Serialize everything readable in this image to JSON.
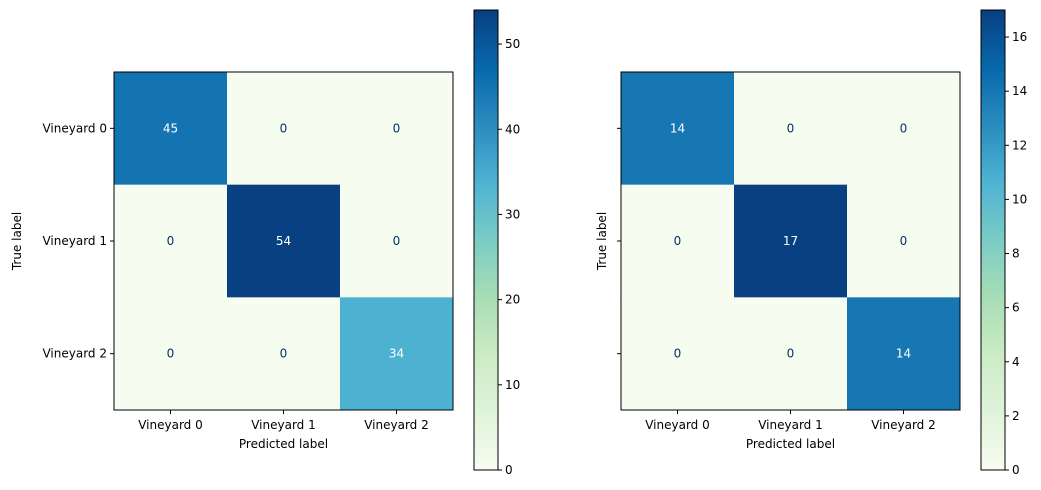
{
  "chart_data": [
    {
      "type": "heatmap",
      "title": "",
      "xlabel": "Predicted label",
      "ylabel": "True label",
      "x_categories": [
        "Vineyard 0",
        "Vineyard 1",
        "Vineyard 2"
      ],
      "y_categories": [
        "Vineyard 0",
        "Vineyard 1",
        "Vineyard 2"
      ],
      "matrix": [
        [
          45,
          0,
          0
        ],
        [
          0,
          54,
          0
        ],
        [
          0,
          0,
          34
        ]
      ],
      "colormap": "GnBu",
      "vmin": 0,
      "vmax": 54,
      "colorbar_ticks": [
        0,
        10,
        20,
        30,
        40,
        50
      ]
    },
    {
      "type": "heatmap",
      "title": "",
      "xlabel": "Predicted label",
      "ylabel": "True label",
      "x_categories": [
        "Vineyard 0",
        "Vineyard 1",
        "Vineyard 2"
      ],
      "y_categories": [
        "Vineyard 0",
        "Vineyard 1",
        "Vineyard 2"
      ],
      "show_y_tick_labels": false,
      "matrix": [
        [
          14,
          0,
          0
        ],
        [
          0,
          17,
          0
        ],
        [
          0,
          0,
          14
        ]
      ],
      "colormap": "GnBu",
      "vmin": 0,
      "vmax": 17,
      "colorbar_ticks": [
        0,
        2,
        4,
        6,
        8,
        10,
        12,
        14,
        16
      ]
    }
  ],
  "colors": {
    "cmap_stops": [
      "#f7fcf0",
      "#e0f3db",
      "#ccebc5",
      "#a8ddb5",
      "#7bccc4",
      "#4eb3d3",
      "#2b8cbe",
      "#0868ac",
      "#084081"
    ],
    "text_dark": "#08306b",
    "text_light": "#ffffff"
  }
}
